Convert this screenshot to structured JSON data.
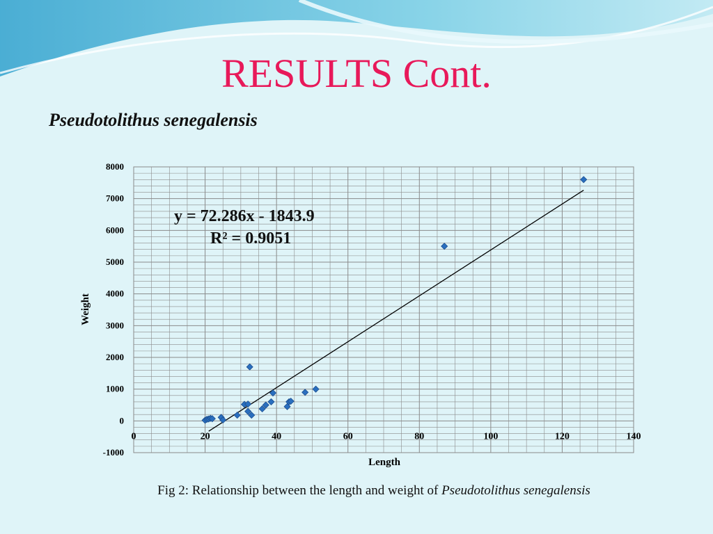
{
  "slide": {
    "title": "RESULTS Cont.",
    "subtitle": "Pseudotolithus senegalensis",
    "caption_prefix": "Fig 2: Relationship between the length and weight of ",
    "caption_species": "Pseudotolithus senegalensis"
  },
  "colors": {
    "title": "#e8195a",
    "point": "#2a6fbf",
    "trendline": "#000000",
    "grid": "#8a8a8a",
    "background": "#dff4f8"
  },
  "chart_data": {
    "type": "scatter",
    "title": "",
    "xlabel": "Length",
    "ylabel": "Weight",
    "xlim": [
      0,
      140
    ],
    "ylim": [
      -1000,
      8000
    ],
    "x_ticks": [
      0,
      20,
      40,
      60,
      80,
      100,
      120,
      140
    ],
    "y_ticks": [
      -1000,
      0,
      1000,
      2000,
      3000,
      4000,
      5000,
      6000,
      7000,
      8000
    ],
    "grid": true,
    "points": [
      {
        "x": 20,
        "y": 20
      },
      {
        "x": 20.5,
        "y": 50
      },
      {
        "x": 21,
        "y": 60
      },
      {
        "x": 21.5,
        "y": 80
      },
      {
        "x": 22,
        "y": 70
      },
      {
        "x": 24.5,
        "y": 110
      },
      {
        "x": 25,
        "y": 30
      },
      {
        "x": 29,
        "y": 180
      },
      {
        "x": 31,
        "y": 520
      },
      {
        "x": 32,
        "y": 530
      },
      {
        "x": 32,
        "y": 300
      },
      {
        "x": 32.5,
        "y": 1700
      },
      {
        "x": 33,
        "y": 180
      },
      {
        "x": 36,
        "y": 380
      },
      {
        "x": 37,
        "y": 500
      },
      {
        "x": 38.5,
        "y": 600
      },
      {
        "x": 39,
        "y": 880
      },
      {
        "x": 43,
        "y": 450
      },
      {
        "x": 43.5,
        "y": 600
      },
      {
        "x": 44,
        "y": 620
      },
      {
        "x": 48,
        "y": 900
      },
      {
        "x": 51,
        "y": 1000
      },
      {
        "x": 87,
        "y": 5500
      },
      {
        "x": 126,
        "y": 7600
      }
    ],
    "trendline": {
      "x_range": [
        21,
        126
      ],
      "equation": "y = 72.286x - 1843.9",
      "r_squared": "R² = 0.9051"
    }
  }
}
